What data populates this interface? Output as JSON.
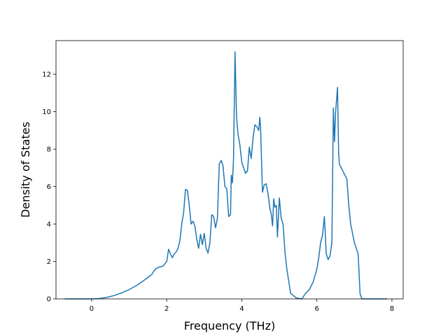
{
  "chart_data": {
    "type": "line",
    "title": "",
    "xlabel": "Frequency (THz)",
    "ylabel": "Density of States",
    "xlim": [
      -0.95,
      8.3
    ],
    "ylim": [
      0,
      13.8
    ],
    "xticks": [
      0,
      2,
      4,
      6,
      8
    ],
    "yticks": [
      0,
      2,
      4,
      6,
      8,
      10,
      12
    ],
    "grid": false,
    "legend": "none",
    "series": [
      {
        "color": "#1f77b4",
        "x": [
          -0.72,
          -0.5,
          -0.3,
          -0.1,
          0.0,
          0.2,
          0.4,
          0.6,
          0.8,
          1.0,
          1.2,
          1.4,
          1.6,
          1.7,
          1.8,
          1.9,
          2.0,
          2.05,
          2.1,
          2.15,
          2.2,
          2.25,
          2.3,
          2.35,
          2.4,
          2.45,
          2.5,
          2.55,
          2.6,
          2.65,
          2.7,
          2.75,
          2.8,
          2.85,
          2.9,
          2.95,
          3.0,
          3.05,
          3.1,
          3.15,
          3.2,
          3.25,
          3.3,
          3.35,
          3.4,
          3.45,
          3.5,
          3.55,
          3.6,
          3.65,
          3.7,
          3.72,
          3.75,
          3.78,
          3.82,
          3.86,
          3.9,
          3.95,
          4.0,
          4.05,
          4.1,
          4.12,
          4.15,
          4.2,
          4.25,
          4.3,
          4.35,
          4.4,
          4.45,
          4.48,
          4.5,
          4.55,
          4.6,
          4.65,
          4.7,
          4.75,
          4.78,
          4.82,
          4.85,
          4.88,
          4.92,
          4.95,
          5.0,
          5.05,
          5.1,
          5.15,
          5.2,
          5.3,
          5.45,
          5.6,
          5.7,
          5.8,
          5.9,
          6.0,
          6.05,
          6.1,
          6.15,
          6.2,
          6.25,
          6.3,
          6.35,
          6.4,
          6.44,
          6.47,
          6.5,
          6.55,
          6.58,
          6.6,
          6.7,
          6.8,
          6.85,
          6.9,
          7.0,
          7.1,
          7.15,
          7.2,
          7.4,
          7.6,
          7.87
        ],
        "values": [
          0,
          0,
          0,
          0,
          0,
          0.02,
          0.08,
          0.18,
          0.32,
          0.5,
          0.72,
          1.0,
          1.3,
          1.6,
          1.7,
          1.75,
          2.0,
          2.65,
          2.4,
          2.2,
          2.4,
          2.5,
          2.7,
          3.1,
          4.0,
          4.6,
          5.85,
          5.8,
          5.0,
          4.0,
          4.15,
          3.9,
          3.2,
          2.7,
          3.45,
          2.9,
          3.5,
          2.7,
          2.45,
          3.0,
          4.5,
          4.4,
          3.8,
          4.3,
          7.2,
          7.4,
          7.1,
          6.0,
          5.9,
          4.4,
          4.5,
          6.6,
          6.2,
          7.5,
          13.2,
          9.7,
          8.8,
          8.2,
          7.3,
          7.0,
          6.7,
          6.8,
          6.8,
          8.1,
          7.5,
          8.6,
          9.3,
          9.2,
          9.0,
          9.7,
          9.2,
          5.7,
          6.1,
          6.15,
          5.6,
          4.8,
          4.6,
          3.9,
          5.35,
          4.9,
          5.0,
          3.3,
          5.4,
          4.3,
          4.0,
          2.5,
          1.6,
          0.3,
          0.05,
          0.0,
          0.3,
          0.5,
          0.9,
          1.6,
          2.2,
          3.0,
          3.4,
          4.4,
          2.4,
          2.1,
          2.3,
          3.0,
          10.2,
          8.4,
          10.0,
          11.3,
          7.8,
          7.2,
          6.8,
          6.4,
          5.0,
          4.0,
          3.0,
          2.4,
          0.3,
          0,
          0,
          0,
          0
        ]
      }
    ]
  }
}
